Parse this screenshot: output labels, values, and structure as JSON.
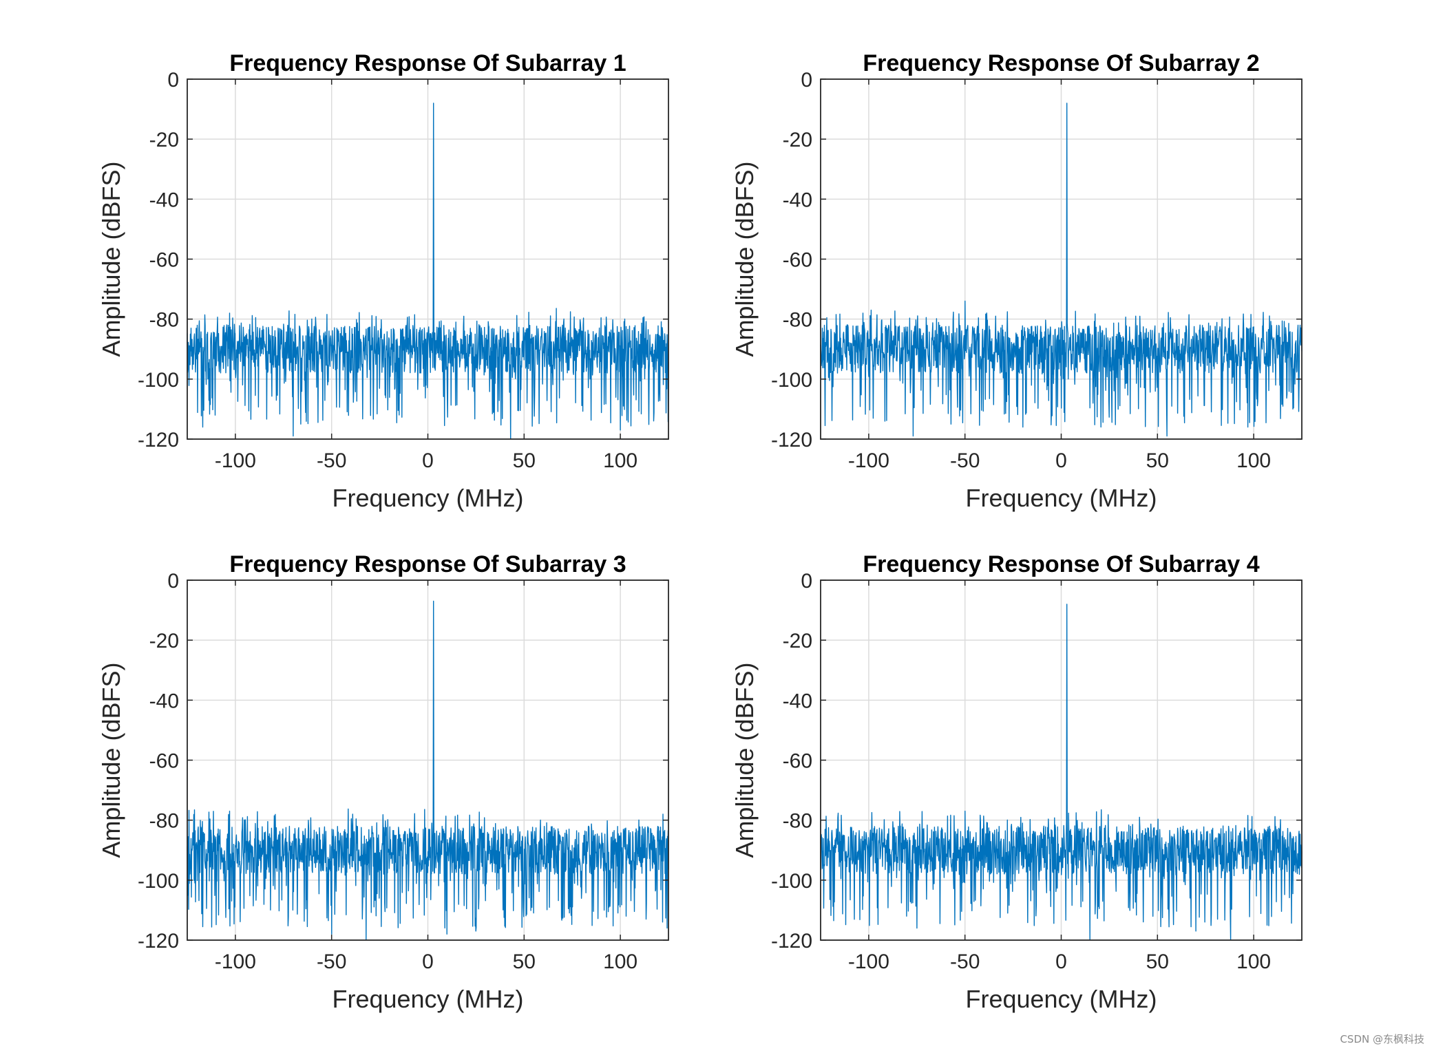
{
  "watermark": "CSDN @东枫科技",
  "style": {
    "line_color": "#0072BD",
    "grid_color": "#dcdcdc",
    "axis_color": "#262626"
  },
  "chart_data": [
    {
      "type": "line",
      "title": "Frequency Response Of Subarray 1",
      "xlabel": "Frequency (MHz)",
      "ylabel": "Amplitude (dBFS)",
      "xlim": [
        -125,
        125
      ],
      "ylim": [
        -120,
        0
      ],
      "xticks": [
        -100,
        -50,
        0,
        50,
        100
      ],
      "yticks": [
        0,
        -20,
        -40,
        -60,
        -80,
        -100,
        -120
      ],
      "xtick_labels": [
        "-100",
        "-50",
        "0",
        "50",
        "100"
      ],
      "ytick_labels": [
        "0",
        "-20",
        "-40",
        "-60",
        "-80",
        "-100",
        "-120"
      ],
      "grid": true,
      "peak": {
        "x": 3,
        "y": -8
      },
      "noise_floor": {
        "mean": -90,
        "spread": 8,
        "min": -120
      },
      "noise_spikes": [
        {
          "x": -103,
          "y": -78
        },
        {
          "x": -117,
          "y": -116
        },
        {
          "x": -70,
          "y": -119
        },
        {
          "x": -66,
          "y": -115
        },
        {
          "x": 43,
          "y": -120
        },
        {
          "x": 100,
          "y": -117
        }
      ]
    },
    {
      "type": "line",
      "title": "Frequency Response Of Subarray 2",
      "xlabel": "Frequency (MHz)",
      "ylabel": "Amplitude (dBFS)",
      "xlim": [
        -125,
        125
      ],
      "ylim": [
        -120,
        0
      ],
      "xticks": [
        -100,
        -50,
        0,
        50,
        100
      ],
      "yticks": [
        0,
        -20,
        -40,
        -60,
        -80,
        -100,
        -120
      ],
      "xtick_labels": [
        "-100",
        "-50",
        "0",
        "50",
        "100"
      ],
      "ytick_labels": [
        "0",
        "-20",
        "-40",
        "-60",
        "-80",
        "-100",
        "-120"
      ],
      "grid": true,
      "peak": {
        "x": 3,
        "y": -8
      },
      "noise_floor": {
        "mean": -90,
        "spread": 8,
        "min": -120
      },
      "noise_spikes": [
        {
          "x": -50,
          "y": -74
        },
        {
          "x": -103,
          "y": -78
        },
        {
          "x": -77,
          "y": -119
        },
        {
          "x": -20,
          "y": -116
        },
        {
          "x": 55,
          "y": -119
        },
        {
          "x": 97,
          "y": -116
        }
      ]
    },
    {
      "type": "line",
      "title": "Frequency Response Of Subarray 3",
      "xlabel": "Frequency (MHz)",
      "ylabel": "Amplitude (dBFS)",
      "xlim": [
        -125,
        125
      ],
      "ylim": [
        -120,
        0
      ],
      "xticks": [
        -100,
        -50,
        0,
        50,
        100
      ],
      "yticks": [
        0,
        -20,
        -40,
        -60,
        -80,
        -100,
        -120
      ],
      "xtick_labels": [
        "-100",
        "-50",
        "0",
        "50",
        "100"
      ],
      "ytick_labels": [
        "0",
        "-20",
        "-40",
        "-60",
        "-80",
        "-100",
        "-120"
      ],
      "grid": true,
      "peak": {
        "x": 3,
        "y": -7
      },
      "noise_floor": {
        "mean": -90,
        "spread": 8,
        "min": -120
      },
      "noise_spikes": [
        {
          "x": -103,
          "y": -77
        },
        {
          "x": -50,
          "y": -118
        },
        {
          "x": -32,
          "y": -120
        },
        {
          "x": 10,
          "y": -118
        },
        {
          "x": 25,
          "y": -117
        },
        {
          "x": 122,
          "y": -114
        }
      ]
    },
    {
      "type": "line",
      "title": "Frequency Response Of Subarray 4",
      "xlabel": "Frequency (MHz)",
      "ylabel": "Amplitude (dBFS)",
      "xlim": [
        -125,
        125
      ],
      "ylim": [
        -120,
        0
      ],
      "xticks": [
        -100,
        -50,
        0,
        50,
        100
      ],
      "yticks": [
        0,
        -20,
        -40,
        -60,
        -80,
        -100,
        -120
      ],
      "xtick_labels": [
        "-100",
        "-50",
        "0",
        "50",
        "100"
      ],
      "ytick_labels": [
        "0",
        "-20",
        "-40",
        "-60",
        "-80",
        "-100",
        "-120"
      ],
      "grid": true,
      "peak": {
        "x": 3,
        "y": -8
      },
      "noise_floor": {
        "mean": -90,
        "spread": 8,
        "min": -120
      },
      "noise_spikes": [
        {
          "x": -50,
          "y": -77
        },
        {
          "x": 15,
          "y": -120
        },
        {
          "x": 88,
          "y": -120
        },
        {
          "x": 70,
          "y": -117
        },
        {
          "x": -75,
          "y": -116
        }
      ]
    }
  ]
}
